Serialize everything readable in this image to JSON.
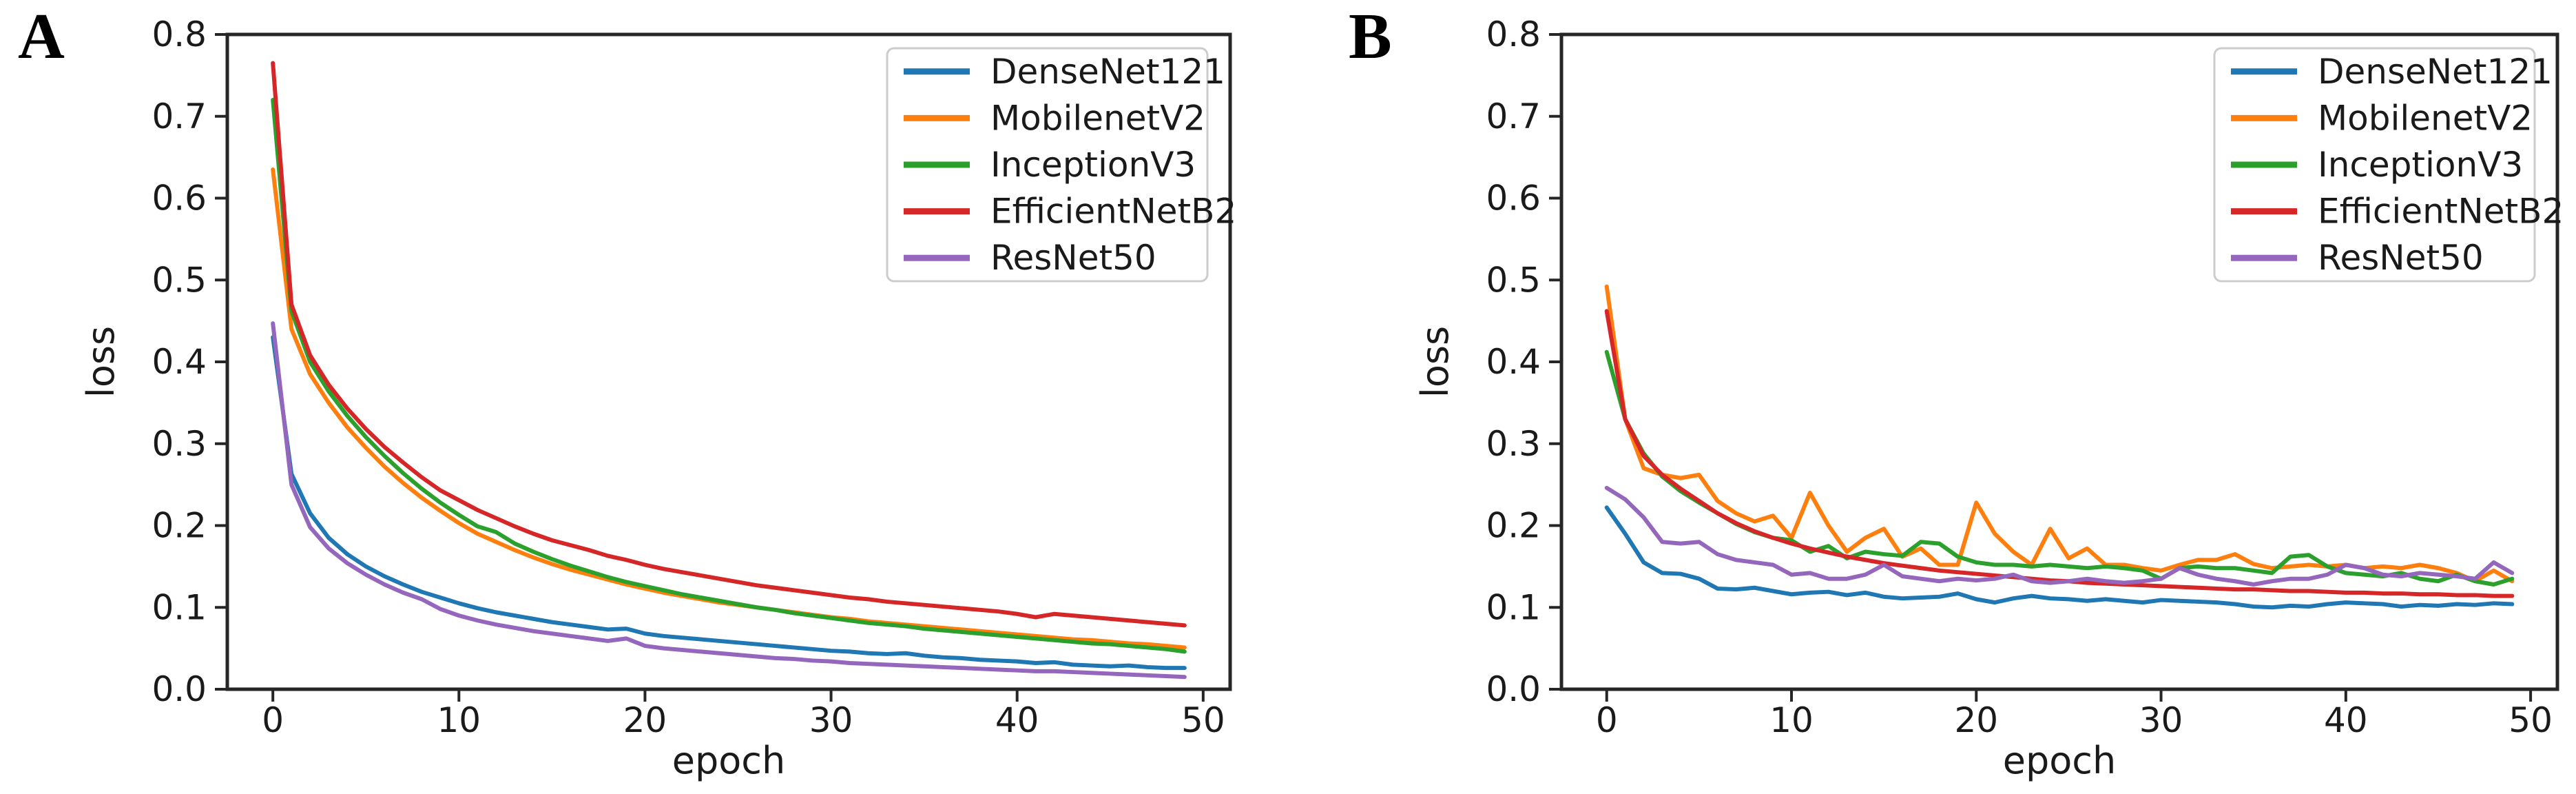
{
  "panels": [
    {
      "label": "A"
    },
    {
      "label": "B"
    }
  ],
  "colors": {
    "DenseNet121": "#1f77b4",
    "MobilenetV2": "#ff7f0e",
    "InceptionV3": "#2ca02c",
    "EfficientNetB2": "#d62728",
    "ResNet50": "#9467bd",
    "spine": "#262626",
    "legend_border": "#cccccc"
  },
  "chart_data": [
    {
      "type": "line",
      "title": "",
      "xlabel": "epoch",
      "ylabel": "loss",
      "xlim": [
        -2.45,
        51.45
      ],
      "ylim": [
        0.0,
        0.8
      ],
      "xticks": [
        0,
        10,
        20,
        30,
        40,
        50
      ],
      "yticks": [
        0.0,
        0.1,
        0.2,
        0.3,
        0.4,
        0.5,
        0.6,
        0.7,
        0.8
      ],
      "grid": false,
      "legend_position": "upper right",
      "x": [
        0,
        1,
        2,
        3,
        4,
        5,
        6,
        7,
        8,
        9,
        10,
        11,
        12,
        13,
        14,
        15,
        16,
        17,
        18,
        19,
        20,
        21,
        22,
        23,
        24,
        25,
        26,
        27,
        28,
        29,
        30,
        31,
        32,
        33,
        34,
        35,
        36,
        37,
        38,
        39,
        40,
        41,
        42,
        43,
        44,
        45,
        46,
        47,
        48,
        49
      ],
      "series": [
        {
          "name": "DenseNet121",
          "color": "#1f77b4",
          "values": [
            0.43,
            0.263,
            0.215,
            0.185,
            0.165,
            0.15,
            0.138,
            0.128,
            0.119,
            0.112,
            0.105,
            0.099,
            0.094,
            0.09,
            0.086,
            0.082,
            0.079,
            0.076,
            0.073,
            0.074,
            0.068,
            0.065,
            0.063,
            0.061,
            0.059,
            0.057,
            0.055,
            0.053,
            0.051,
            0.049,
            0.047,
            0.046,
            0.044,
            0.043,
            0.044,
            0.041,
            0.039,
            0.038,
            0.036,
            0.035,
            0.034,
            0.032,
            0.033,
            0.03,
            0.029,
            0.028,
            0.029,
            0.027,
            0.026,
            0.026
          ]
        },
        {
          "name": "MobilenetV2",
          "color": "#ff7f0e",
          "values": [
            0.635,
            0.44,
            0.385,
            0.35,
            0.32,
            0.295,
            0.272,
            0.252,
            0.234,
            0.218,
            0.203,
            0.19,
            0.18,
            0.17,
            0.161,
            0.153,
            0.146,
            0.14,
            0.134,
            0.128,
            0.123,
            0.118,
            0.114,
            0.11,
            0.106,
            0.103,
            0.1,
            0.097,
            0.094,
            0.091,
            0.088,
            0.086,
            0.083,
            0.081,
            0.079,
            0.077,
            0.075,
            0.073,
            0.071,
            0.069,
            0.067,
            0.065,
            0.063,
            0.061,
            0.06,
            0.058,
            0.056,
            0.055,
            0.053,
            0.051
          ]
        },
        {
          "name": "InceptionV3",
          "color": "#2ca02c",
          "values": [
            0.72,
            0.462,
            0.4,
            0.364,
            0.334,
            0.308,
            0.285,
            0.264,
            0.245,
            0.228,
            0.213,
            0.199,
            0.192,
            0.178,
            0.168,
            0.159,
            0.151,
            0.144,
            0.137,
            0.131,
            0.126,
            0.121,
            0.116,
            0.112,
            0.108,
            0.104,
            0.1,
            0.097,
            0.093,
            0.09,
            0.087,
            0.084,
            0.081,
            0.079,
            0.077,
            0.074,
            0.072,
            0.07,
            0.068,
            0.066,
            0.064,
            0.062,
            0.06,
            0.058,
            0.056,
            0.055,
            0.053,
            0.051,
            0.049,
            0.046
          ]
        },
        {
          "name": "EfficientNetB2",
          "color": "#d62728",
          "values": [
            0.765,
            0.47,
            0.408,
            0.372,
            0.343,
            0.318,
            0.296,
            0.277,
            0.259,
            0.243,
            0.231,
            0.219,
            0.209,
            0.199,
            0.19,
            0.182,
            0.176,
            0.17,
            0.163,
            0.158,
            0.152,
            0.147,
            0.143,
            0.139,
            0.135,
            0.131,
            0.127,
            0.124,
            0.121,
            0.118,
            0.115,
            0.112,
            0.11,
            0.107,
            0.105,
            0.103,
            0.101,
            0.099,
            0.097,
            0.095,
            0.092,
            0.088,
            0.092,
            0.09,
            0.088,
            0.086,
            0.084,
            0.082,
            0.08,
            0.078
          ]
        },
        {
          "name": "ResNet50",
          "color": "#9467bd",
          "values": [
            0.447,
            0.25,
            0.198,
            0.172,
            0.154,
            0.14,
            0.128,
            0.118,
            0.11,
            0.098,
            0.09,
            0.084,
            0.079,
            0.075,
            0.071,
            0.068,
            0.065,
            0.062,
            0.059,
            0.062,
            0.053,
            0.05,
            0.048,
            0.046,
            0.044,
            0.042,
            0.04,
            0.038,
            0.037,
            0.035,
            0.034,
            0.032,
            0.031,
            0.03,
            0.029,
            0.028,
            0.027,
            0.026,
            0.025,
            0.024,
            0.023,
            0.022,
            0.022,
            0.021,
            0.02,
            0.019,
            0.018,
            0.017,
            0.016,
            0.015
          ]
        }
      ]
    },
    {
      "type": "line",
      "title": "",
      "xlabel": "epoch",
      "ylabel": "loss",
      "xlim": [
        -2.45,
        51.45
      ],
      "ylim": [
        0.0,
        0.8
      ],
      "xticks": [
        0,
        10,
        20,
        30,
        40,
        50
      ],
      "yticks": [
        0.0,
        0.1,
        0.2,
        0.3,
        0.4,
        0.5,
        0.6,
        0.7,
        0.8
      ],
      "grid": false,
      "legend_position": "upper right",
      "x": [
        0,
        1,
        2,
        3,
        4,
        5,
        6,
        7,
        8,
        9,
        10,
        11,
        12,
        13,
        14,
        15,
        16,
        17,
        18,
        19,
        20,
        21,
        22,
        23,
        24,
        25,
        26,
        27,
        28,
        29,
        30,
        31,
        32,
        33,
        34,
        35,
        36,
        37,
        38,
        39,
        40,
        41,
        42,
        43,
        44,
        45,
        46,
        47,
        48,
        49
      ],
      "series": [
        {
          "name": "DenseNet121",
          "color": "#1f77b4",
          "values": [
            0.222,
            0.19,
            0.155,
            0.142,
            0.141,
            0.135,
            0.123,
            0.122,
            0.124,
            0.12,
            0.116,
            0.118,
            0.119,
            0.115,
            0.118,
            0.113,
            0.111,
            0.112,
            0.113,
            0.117,
            0.11,
            0.106,
            0.111,
            0.114,
            0.111,
            0.11,
            0.108,
            0.11,
            0.108,
            0.106,
            0.109,
            0.108,
            0.107,
            0.106,
            0.104,
            0.101,
            0.1,
            0.102,
            0.101,
            0.104,
            0.106,
            0.105,
            0.104,
            0.101,
            0.103,
            0.102,
            0.104,
            0.103,
            0.105,
            0.104
          ]
        },
        {
          "name": "MobilenetV2",
          "color": "#ff7f0e",
          "values": [
            0.492,
            0.33,
            0.27,
            0.262,
            0.258,
            0.262,
            0.23,
            0.215,
            0.205,
            0.212,
            0.185,
            0.24,
            0.2,
            0.168,
            0.185,
            0.196,
            0.162,
            0.172,
            0.152,
            0.152,
            0.228,
            0.19,
            0.168,
            0.152,
            0.196,
            0.16,
            0.172,
            0.152,
            0.152,
            0.148,
            0.145,
            0.152,
            0.158,
            0.158,
            0.165,
            0.153,
            0.148,
            0.15,
            0.152,
            0.15,
            0.152,
            0.148,
            0.15,
            0.148,
            0.152,
            0.148,
            0.142,
            0.132,
            0.145,
            0.132
          ]
        },
        {
          "name": "InceptionV3",
          "color": "#2ca02c",
          "values": [
            0.412,
            0.33,
            0.288,
            0.26,
            0.242,
            0.228,
            0.215,
            0.202,
            0.192,
            0.185,
            0.182,
            0.168,
            0.175,
            0.16,
            0.168,
            0.165,
            0.163,
            0.18,
            0.178,
            0.162,
            0.155,
            0.152,
            0.152,
            0.15,
            0.152,
            0.15,
            0.148,
            0.15,
            0.148,
            0.145,
            0.135,
            0.148,
            0.15,
            0.148,
            0.148,
            0.145,
            0.142,
            0.162,
            0.164,
            0.15,
            0.142,
            0.14,
            0.138,
            0.142,
            0.135,
            0.132,
            0.14,
            0.132,
            0.128,
            0.135
          ]
        },
        {
          "name": "EfficientNetB2",
          "color": "#d62728",
          "values": [
            0.462,
            0.33,
            0.285,
            0.262,
            0.245,
            0.23,
            0.215,
            0.203,
            0.193,
            0.185,
            0.178,
            0.172,
            0.167,
            0.162,
            0.158,
            0.154,
            0.151,
            0.148,
            0.145,
            0.143,
            0.141,
            0.139,
            0.137,
            0.135,
            0.133,
            0.132,
            0.13,
            0.129,
            0.128,
            0.127,
            0.126,
            0.125,
            0.124,
            0.123,
            0.122,
            0.122,
            0.121,
            0.12,
            0.12,
            0.119,
            0.118,
            0.118,
            0.117,
            0.117,
            0.116,
            0.116,
            0.115,
            0.115,
            0.114,
            0.114
          ]
        },
        {
          "name": "ResNet50",
          "color": "#9467bd",
          "values": [
            0.246,
            0.232,
            0.21,
            0.18,
            0.178,
            0.18,
            0.165,
            0.158,
            0.155,
            0.152,
            0.14,
            0.142,
            0.135,
            0.135,
            0.14,
            0.152,
            0.138,
            0.135,
            0.132,
            0.135,
            0.133,
            0.135,
            0.14,
            0.132,
            0.13,
            0.132,
            0.135,
            0.132,
            0.13,
            0.132,
            0.135,
            0.148,
            0.14,
            0.135,
            0.132,
            0.128,
            0.132,
            0.135,
            0.135,
            0.14,
            0.152,
            0.148,
            0.14,
            0.138,
            0.142,
            0.14,
            0.138,
            0.135,
            0.155,
            0.142
          ]
        }
      ]
    }
  ]
}
